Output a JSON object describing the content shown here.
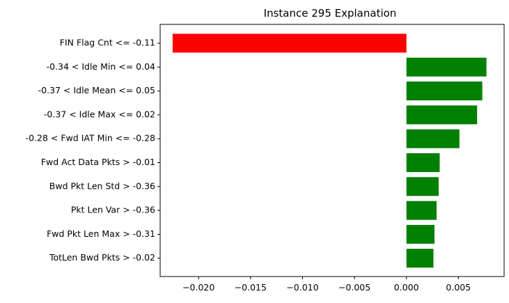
{
  "chart_data": {
    "type": "bar",
    "orientation": "horizontal",
    "title": "Instance 295 Explanation",
    "xlabel": "",
    "ylabel": "",
    "categories": [
      "FIN Flag Cnt <= -0.11",
      "-0.34 < Idle Min <= 0.04",
      "-0.37 < Idle Mean <= 0.05",
      "-0.37 < Idle Max <= 0.02",
      "-0.28 < Fwd IAT Min <= -0.28",
      "Fwd Act Data Pkts > -0.01",
      "Bwd Pkt Len Std > -0.36",
      "Pkt Len Var > -0.36",
      "Fwd Pkt Len Max > -0.31",
      "TotLen Bwd Pkts > -0.02"
    ],
    "values": [
      -0.0225,
      0.0077,
      0.0073,
      0.0068,
      0.0051,
      0.0032,
      0.0031,
      0.0029,
      0.0027,
      0.0026
    ],
    "colors": {
      "negative": "#ff0000",
      "positive": "#008000"
    },
    "xlim": [
      -0.0237,
      0.0094
    ],
    "xticks": [
      -0.02,
      -0.015,
      -0.01,
      -0.005,
      0.0,
      0.005
    ],
    "xtick_labels": [
      "−0.020",
      "−0.015",
      "−0.010",
      "−0.005",
      "0.000",
      "0.005"
    ],
    "grid": false,
    "legend": "none"
  }
}
